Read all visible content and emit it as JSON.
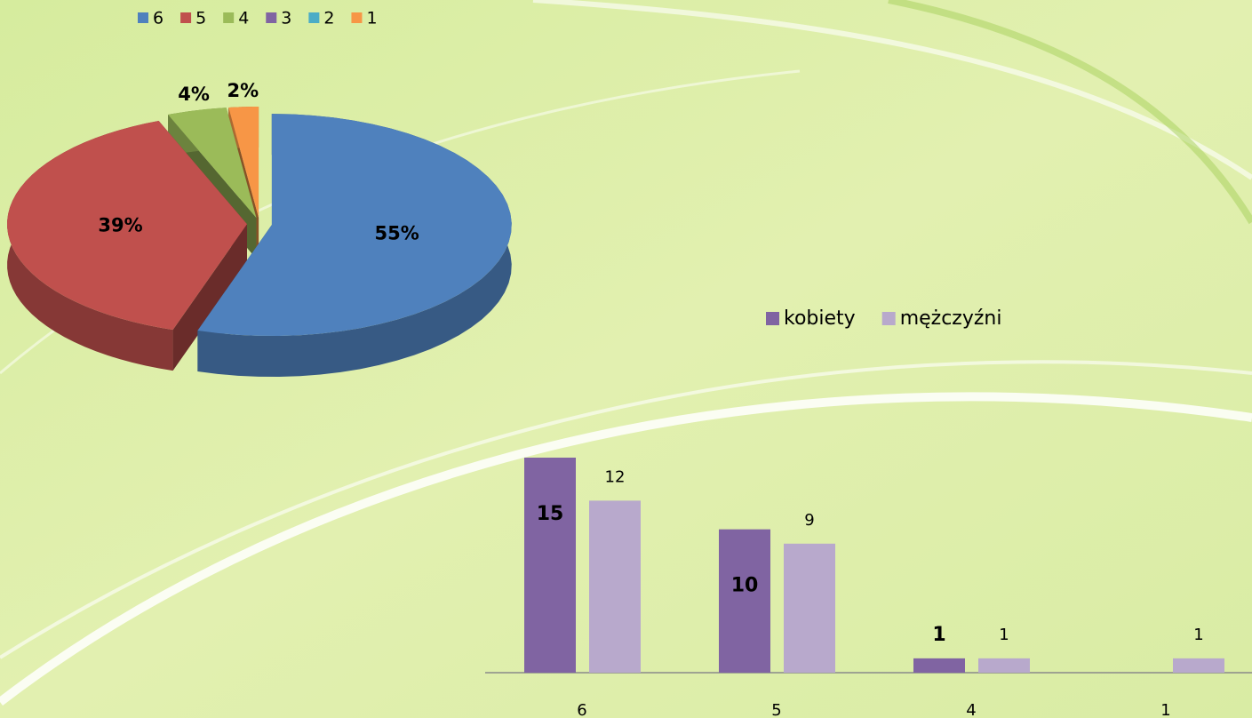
{
  "chart_data": [
    {
      "type": "pie",
      "categories": [
        "6",
        "5",
        "4",
        "3",
        "2",
        "1"
      ],
      "values": [
        55,
        39,
        4,
        0,
        0,
        2
      ],
      "value_labels": [
        "55%",
        "39%",
        "4%",
        null,
        null,
        "2%"
      ],
      "colors": [
        "#4f81bd",
        "#c0504d",
        "#9bbb59",
        "#8064a2",
        "#4bacc6",
        "#f79646"
      ],
      "legend": "top"
    },
    {
      "type": "bar",
      "categories": [
        "6",
        "5",
        "4",
        "1"
      ],
      "series": [
        {
          "name": "kobiety",
          "color": "#8064a2",
          "values": [
            15,
            10,
            1,
            null
          ]
        },
        {
          "name": "mężczyźni",
          "color": "#b8a9cc",
          "values": [
            12,
            9,
            1,
            1
          ]
        }
      ],
      "ylim": [
        0,
        15
      ],
      "legend": "top"
    }
  ]
}
